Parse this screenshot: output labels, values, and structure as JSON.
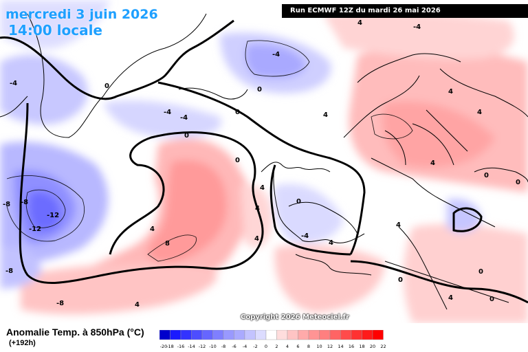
{
  "header": {
    "date": "mercredi 3 juin 2026",
    "time": "14:00 locale",
    "run": "Run ECMWF 12Z du mardi 26 mai 2026"
  },
  "copyright": "Copyright 2026 Meteociel.fr",
  "legend": {
    "title": "Anomalie Temp. à 850hPa (°C)",
    "subtitle": "(+192h)",
    "levels": [
      "-20",
      "-18",
      "-16",
      "-14",
      "-12",
      "-10",
      "-8",
      "-6",
      "-4",
      "-2",
      "0",
      "2",
      "4",
      "6",
      "8",
      "10",
      "12",
      "14",
      "16",
      "18",
      "20",
      "22"
    ],
    "colors": [
      "#0000cc",
      "#1a1aff",
      "#3333ff",
      "#4d4dff",
      "#6666ff",
      "#7f7fff",
      "#9999ff",
      "#aaaaff",
      "#c3c3ff",
      "#dcdcff",
      "#ffffff",
      "#ffdddd",
      "#ffc4c4",
      "#ffaaaa",
      "#ff9494",
      "#ff7f7f",
      "#ff6464",
      "#ff4b4b",
      "#ff3232",
      "#ff1a1a",
      "#ff0000"
    ]
  },
  "contour_labels": [
    "0",
    "0",
    "0",
    "0",
    "0",
    "0",
    "0",
    "0",
    "0",
    "0",
    "0",
    "4",
    "4",
    "4",
    "4",
    "4",
    "4",
    "4",
    "4",
    "4",
    "4",
    "4",
    "4",
    "4",
    "-4",
    "-4",
    "-4",
    "-4",
    "-4",
    "-4",
    "8",
    "-8",
    "-8",
    "-8",
    "-8",
    "-12",
    "-12"
  ]
}
